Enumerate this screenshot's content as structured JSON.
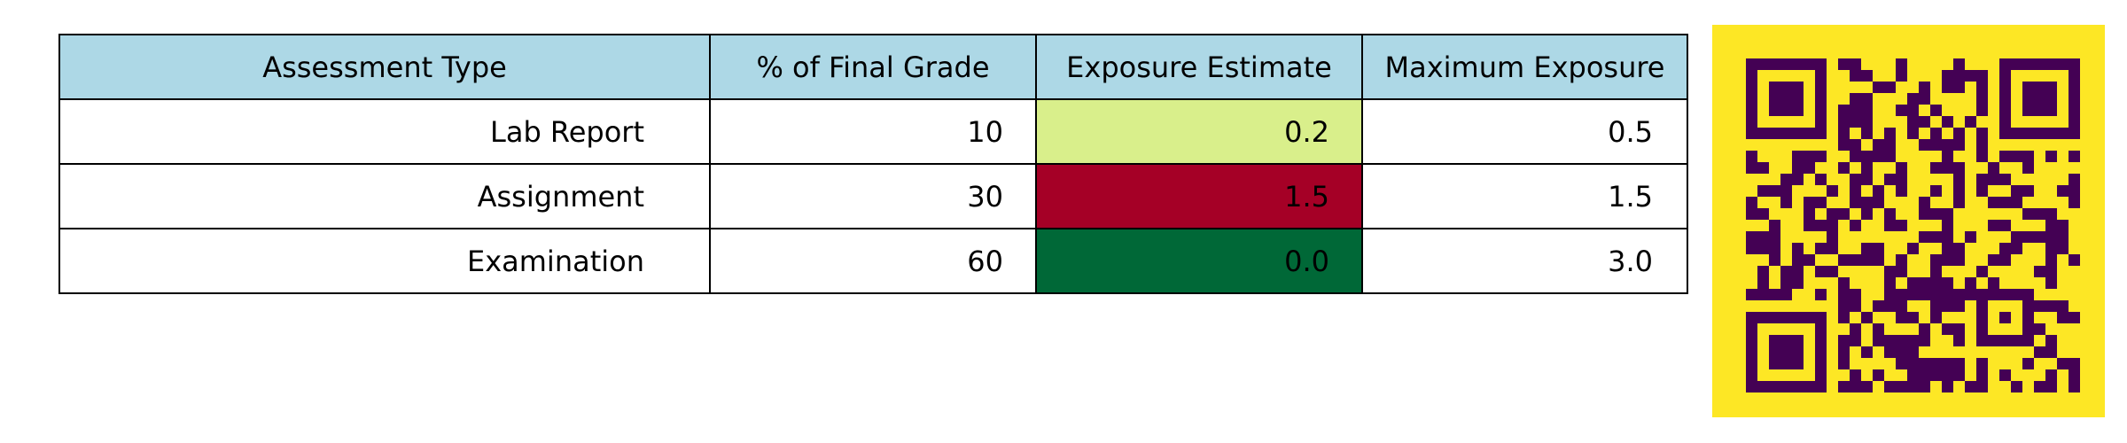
{
  "chart_data": {
    "type": "table",
    "columns": [
      "Assessment Type",
      "% of Final Grade",
      "Exposure Estimate",
      "Maximum Exposure"
    ],
    "rows": [
      {
        "cells": [
          "Lab Report",
          "10",
          "0.2",
          "0.5"
        ],
        "highlight_color": "#d9ef8b"
      },
      {
        "cells": [
          "Assignment",
          "30",
          "1.5",
          "1.5"
        ],
        "highlight_color": "#a50026"
      },
      {
        "cells": [
          "Examination",
          "60",
          "0.0",
          "3.0"
        ],
        "highlight_color": "#006837"
      }
    ],
    "highlighted_column": "Exposure Estimate"
  },
  "colors": {
    "header_background": "#add8e6",
    "qr_background": "#fde725",
    "qr_foreground": "#440154"
  },
  "qr_code": {
    "icon": "qr-code-icon"
  }
}
